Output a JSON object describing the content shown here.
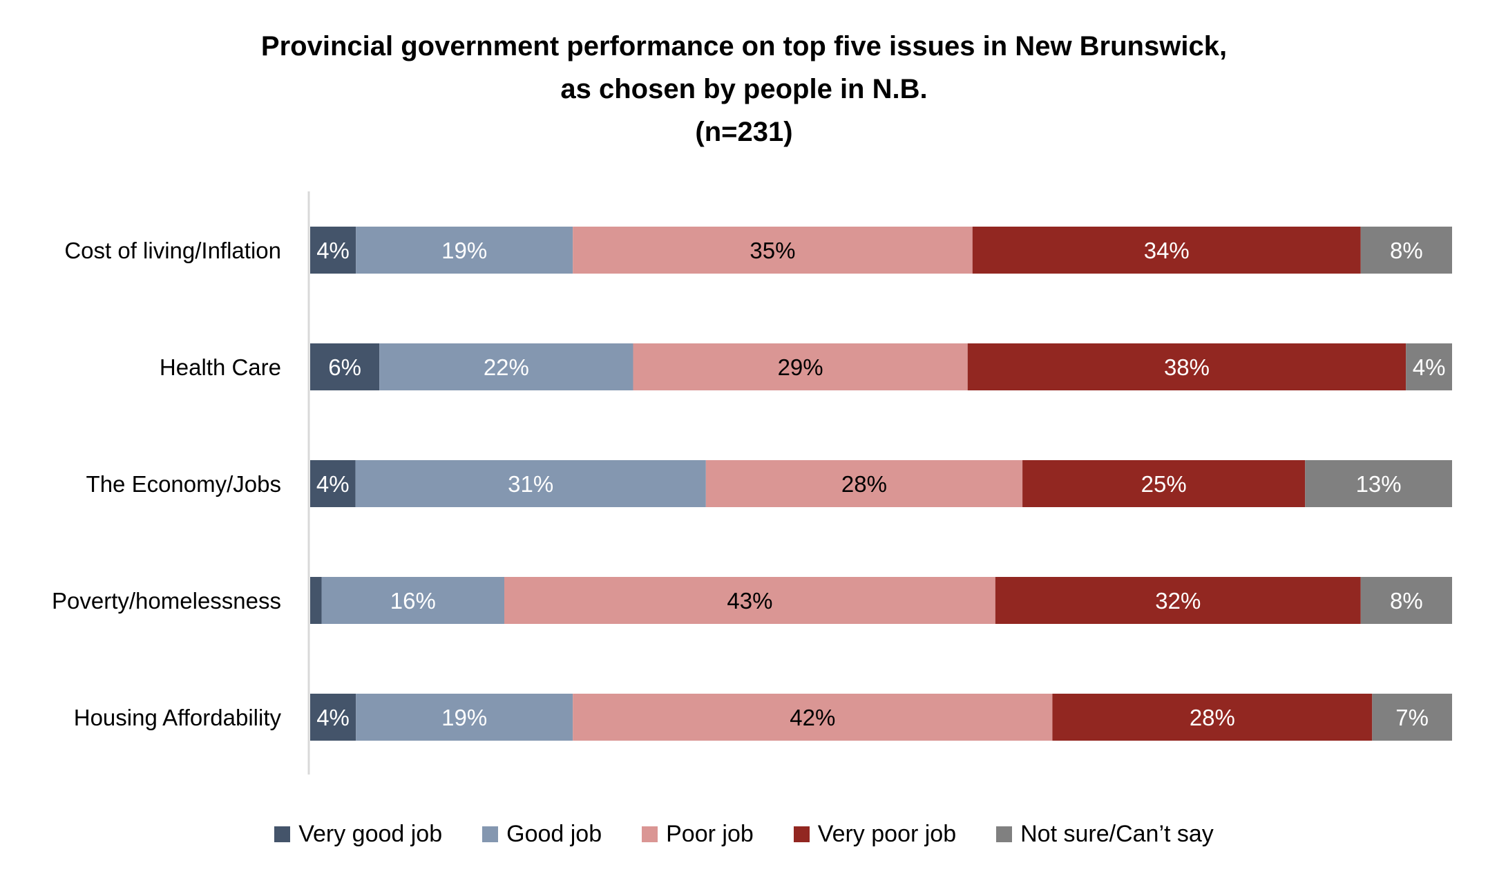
{
  "chart_data": {
    "type": "bar",
    "orientation": "horizontal",
    "stacked": true,
    "percent_stacked": true,
    "title_lines": [
      "Provincial government performance on top five issues in New Brunswick,",
      "as chosen by people in N.B.",
      "(n=231)"
    ],
    "xlabel": "",
    "ylabel": "",
    "categories": [
      "Cost of living/Inflation",
      "Health Care",
      "The Economy/Jobs",
      "Poverty/homelessness",
      "Housing Affordability"
    ],
    "series": [
      {
        "name": "Very good job",
        "color": "#44546A",
        "label_color": "#FFFFFF",
        "values": [
          4,
          6,
          4,
          1,
          4
        ],
        "labels": [
          "4%",
          "6%",
          "4%",
          "",
          "4%"
        ]
      },
      {
        "name": "Good job",
        "color": "#8497B0",
        "label_color": "#FFFFFF",
        "values": [
          19,
          22,
          31,
          16,
          19
        ],
        "labels": [
          "19%",
          "22%",
          "31%",
          "16%",
          "19%"
        ]
      },
      {
        "name": "Poor job",
        "color": "#DA9694",
        "label_color": "#000000",
        "values": [
          35,
          29,
          28,
          43,
          42
        ],
        "labels": [
          "35%",
          "29%",
          "28%",
          "43%",
          "42%"
        ]
      },
      {
        "name": "Very poor job",
        "color": "#922721",
        "label_color": "#FFFFFF",
        "values": [
          34,
          38,
          25,
          32,
          28
        ],
        "labels": [
          "34%",
          "38%",
          "25%",
          "32%",
          "28%"
        ]
      },
      {
        "name": "Not sure/Can’t say",
        "color": "#808080",
        "label_color": "#FFFFFF",
        "values": [
          8,
          4,
          13,
          8,
          7
        ],
        "labels": [
          "8%",
          "4%",
          "13%",
          "8%",
          "7%"
        ]
      }
    ],
    "xlim": [
      0,
      100
    ],
    "grid": false,
    "axis_color": "#D9D9D9",
    "legend_position": "bottom"
  }
}
